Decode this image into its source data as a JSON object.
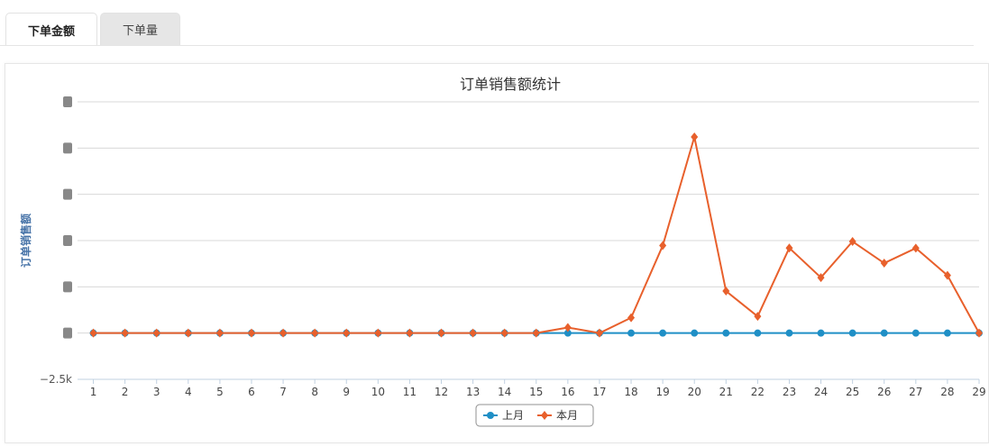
{
  "tabs": [
    {
      "label": "下单金额",
      "active": true
    },
    {
      "label": "下单量",
      "active": false
    }
  ],
  "chart_data": {
    "type": "line",
    "title": "订单销售额统计",
    "ylabel": "订单销售额",
    "xlabel": "",
    "categories": [
      "1",
      "2",
      "3",
      "4",
      "5",
      "6",
      "7",
      "8",
      "9",
      "10",
      "11",
      "12",
      "13",
      "14",
      "15",
      "16",
      "17",
      "18",
      "19",
      "20",
      "21",
      "22",
      "23",
      "24",
      "25",
      "26",
      "27",
      "28",
      "29"
    ],
    "ylim": [
      -2500,
      12500
    ],
    "yticks": [
      -2500,
      0,
      2500,
      5000,
      7500,
      10000,
      12500
    ],
    "ytick_labels": {
      "-2500": "−2.5k"
    },
    "grid": true,
    "legend_position": "bottom-center",
    "series": [
      {
        "name": "上月",
        "color": "#1f8fc6",
        "marker": "circle",
        "values": [
          0,
          0,
          0,
          0,
          0,
          0,
          0,
          0,
          0,
          0,
          0,
          0,
          0,
          0,
          0,
          0,
          0,
          0,
          0,
          0,
          0,
          0,
          0,
          0,
          0,
          0,
          0,
          0,
          0
        ]
      },
      {
        "name": "本月",
        "color": "#e8602c",
        "marker": "diamond",
        "values": [
          0,
          0,
          0,
          0,
          0,
          0,
          0,
          0,
          0,
          0,
          0,
          0,
          0,
          0,
          0,
          300,
          0,
          830,
          4730,
          10600,
          2270,
          900,
          4600,
          3000,
          4950,
          3780,
          4590,
          3120,
          0
        ]
      }
    ]
  }
}
